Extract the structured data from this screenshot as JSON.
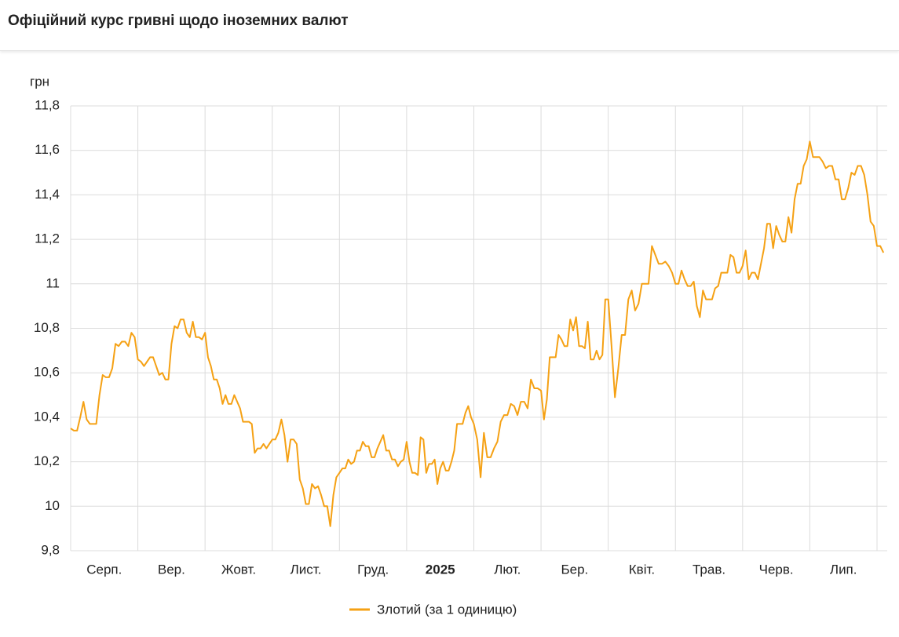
{
  "title": "Офіційний курс гривні щодо іноземних валют",
  "chart_data": {
    "type": "line",
    "y_unit": "грн",
    "color": "#f5a114",
    "grid": true,
    "ylim": [
      9.8,
      11.8
    ],
    "yticks": [
      {
        "value": 9.8,
        "label": "9,8"
      },
      10,
      {
        "value": 10.2,
        "label": "10,2"
      },
      {
        "value": 10.4,
        "label": "10,4"
      },
      {
        "value": 10.6,
        "label": "10,6"
      },
      {
        "value": 10.8,
        "label": "10,8"
      },
      11,
      {
        "value": 11.2,
        "label": "11,2"
      },
      {
        "value": 11.4,
        "label": "11,4"
      },
      {
        "value": 11.6,
        "label": "11,6"
      },
      {
        "value": 11.8,
        "label": "11,8"
      }
    ],
    "series_name": "Злотий (за 1 одиницю)",
    "months": [
      {
        "label": "Серп.",
        "values": [
          10.35,
          10.34,
          10.34,
          10.4,
          10.47,
          10.39,
          10.37,
          10.37,
          10.37,
          10.5,
          10.59,
          10.58,
          10.58,
          10.62,
          10.73,
          10.72,
          10.74,
          10.74,
          10.72,
          10.78,
          10.76
        ]
      },
      {
        "label": "Вер.",
        "values": [
          10.66,
          10.65,
          10.63,
          10.65,
          10.67,
          10.67,
          10.63,
          10.59,
          10.6,
          10.57,
          10.57,
          10.73,
          10.81,
          10.8,
          10.84,
          10.84,
          10.78,
          10.76,
          10.83,
          10.76,
          10.76,
          10.75
        ]
      },
      {
        "label": "Жовт.",
        "values": [
          10.78,
          10.67,
          10.63,
          10.57,
          10.57,
          10.53,
          10.46,
          10.5,
          10.46,
          10.46,
          10.5,
          10.47,
          10.44,
          10.38,
          10.38,
          10.38,
          10.37,
          10.24,
          10.26,
          10.26,
          10.28,
          10.26,
          10.28
        ]
      },
      {
        "label": "Лист.",
        "values": [
          10.3,
          10.3,
          10.33,
          10.39,
          10.32,
          10.2,
          10.3,
          10.3,
          10.28,
          10.12,
          10.08,
          10.01,
          10.01,
          10.1,
          10.08,
          10.09,
          10.05,
          10.0,
          10.0,
          9.91,
          10.05,
          10.13
        ]
      },
      {
        "label": "Груд.",
        "values": [
          10.15,
          10.17,
          10.17,
          10.21,
          10.19,
          10.2,
          10.25,
          10.25,
          10.29,
          10.27,
          10.27,
          10.22,
          10.22,
          10.26,
          10.29,
          10.32,
          10.25,
          10.25,
          10.21,
          10.21,
          10.18,
          10.2,
          10.21
        ]
      },
      {
        "label": "2025",
        "bold": true,
        "values": [
          10.29,
          10.2,
          10.15,
          10.15,
          10.14,
          10.31,
          10.3,
          10.15,
          10.19,
          10.19,
          10.21,
          10.1,
          10.17,
          10.2,
          10.16,
          10.16,
          10.2,
          10.25,
          10.37,
          10.37,
          10.37,
          10.42,
          10.45,
          10.4
        ]
      },
      {
        "label": "Лют.",
        "values": [
          10.37,
          10.3,
          10.13,
          10.33,
          10.22,
          10.22,
          10.26,
          10.29,
          10.38,
          10.41,
          10.41,
          10.46,
          10.45,
          10.41,
          10.47,
          10.47,
          10.44,
          10.57,
          10.53,
          10.53
        ]
      },
      {
        "label": "Бер.",
        "values": [
          10.52,
          10.39,
          10.48,
          10.67,
          10.67,
          10.67,
          10.77,
          10.75,
          10.72,
          10.72,
          10.84,
          10.79,
          10.85,
          10.72,
          10.72,
          10.71,
          10.83,
          10.66,
          10.66,
          10.7,
          10.66,
          10.68,
          10.93
        ]
      },
      {
        "label": "Квіт.",
        "values": [
          10.93,
          10.72,
          10.49,
          10.62,
          10.77,
          10.77,
          10.93,
          10.97,
          10.88,
          10.91,
          11.0,
          11.0,
          11.0,
          11.17,
          11.13,
          11.09,
          11.09,
          11.1,
          11.08,
          11.05
        ]
      },
      {
        "label": "Трав.",
        "values": [
          11.0,
          11.0,
          11.06,
          11.02,
          10.99,
          10.99,
          11.01,
          10.9,
          10.85,
          10.97,
          10.93,
          10.93,
          10.93,
          10.98,
          10.99,
          11.05,
          11.05,
          11.05,
          11.13,
          11.12,
          11.05,
          11.05
        ]
      },
      {
        "label": "Черв.",
        "values": [
          11.08,
          11.15,
          11.02,
          11.05,
          11.05,
          11.02,
          11.09,
          11.16,
          11.27,
          11.27,
          11.16,
          11.26,
          11.22,
          11.19,
          11.19,
          11.3,
          11.23,
          11.38,
          11.45,
          11.45,
          11.53,
          11.56
        ]
      },
      {
        "label": "Лип.",
        "values": [
          11.64,
          11.57,
          11.57,
          11.57,
          11.55,
          11.52,
          11.53,
          11.53,
          11.47,
          11.47,
          11.38,
          11.38,
          11.43,
          11.5,
          11.49,
          11.53,
          11.53,
          11.49,
          11.4,
          11.28,
          11.26
        ]
      },
      {
        "label": null,
        "values": [
          11.17,
          11.17,
          11.14
        ]
      }
    ]
  }
}
